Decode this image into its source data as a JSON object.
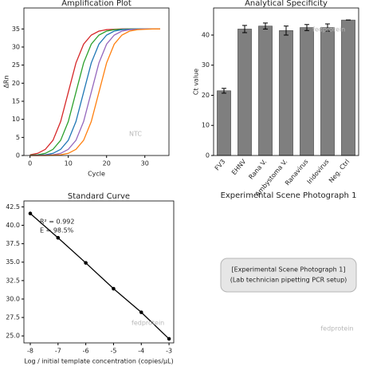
{
  "chart_data": [
    {
      "type": "line",
      "title": "Amplification Plot",
      "x_label": "Cycle",
      "y_label": "ΔRn",
      "x": [
        0,
        2,
        4,
        6,
        8,
        10,
        12,
        14,
        16,
        18,
        20,
        22,
        24,
        26,
        28,
        30,
        32,
        34
      ],
      "series": [
        {
          "color": "#d62728",
          "values": [
            0.2,
            0.6,
            1.7,
            4.2,
            9.4,
            17.5,
            25.6,
            30.8,
            33.3,
            34.4,
            34.8,
            34.9,
            35,
            35,
            35,
            35,
            35,
            35
          ]
        },
        {
          "color": "#2ca02c",
          "values": [
            0.1,
            0.2,
            0.6,
            1.7,
            4.2,
            9.4,
            17.5,
            25.6,
            30.8,
            33.3,
            34.4,
            34.8,
            34.9,
            35,
            35,
            35,
            35,
            35
          ]
        },
        {
          "color": "#1f77b4",
          "values": [
            0,
            0.1,
            0.2,
            0.6,
            1.7,
            4.2,
            9.4,
            17.5,
            25.6,
            30.8,
            33.3,
            34.4,
            34.8,
            34.9,
            35,
            35,
            35,
            35
          ]
        },
        {
          "color": "#9467bd",
          "values": [
            0,
            0,
            0.1,
            0.2,
            0.6,
            1.7,
            4.2,
            9.4,
            17.5,
            25.6,
            30.8,
            33.3,
            34.4,
            34.8,
            34.9,
            35,
            35,
            35
          ]
        },
        {
          "color": "#ff7f0e",
          "values": [
            0,
            0,
            0,
            0.1,
            0.2,
            0.6,
            1.7,
            4.2,
            9.4,
            17.5,
            25.6,
            30.8,
            33.3,
            34.4,
            34.8,
            34.9,
            35,
            35
          ]
        }
      ],
      "xlim": [
        -1.6,
        36.3
      ],
      "xticks": [
        0,
        10,
        20,
        30
      ],
      "ylim": [
        0,
        40.8
      ],
      "yticks": [
        0,
        5,
        10,
        15,
        20,
        25,
        30,
        35
      ],
      "annotations": [
        "NTC"
      ]
    },
    {
      "type": "bar",
      "title": "Analytical Specificity",
      "y_label": "Ct value",
      "categories": [
        "FV3",
        "EHNV",
        "Rana V.",
        "Ambystoma V.",
        "Ranavirus",
        "Iridovirus",
        "Neg. Ctrl"
      ],
      "values": [
        21.5,
        42,
        43,
        41.5,
        42.5,
        42.5,
        45
      ],
      "errors": [
        0.8,
        1.2,
        1,
        1.5,
        1,
        1.2,
        0
      ],
      "color": "#7f7f7f",
      "ylim": [
        0,
        49
      ],
      "yticks": [
        0,
        10,
        20,
        30,
        40
      ],
      "annotations": [
        "fedprotein"
      ]
    },
    {
      "type": "line",
      "title": "Standard Curve",
      "x_label": "Log / initial template concentration (copies/µL)",
      "markers": true,
      "x": [
        -8,
        -7,
        -6,
        -5,
        -4,
        -3
      ],
      "series": [
        {
          "color": "#000000",
          "values": [
            41.6,
            38.3,
            34.9,
            31.4,
            28.2,
            24.6
          ]
        }
      ],
      "xlim": [
        -8.23,
        -2.83
      ],
      "xticks": [
        -8,
        -7,
        -6,
        -5,
        -4,
        -3
      ],
      "ylim": [
        24.05,
        43.3
      ],
      "yticks": [
        {
          "value": 25,
          "label": "25.0"
        },
        {
          "value": 27.5,
          "label": "27.5"
        },
        {
          "value": 30,
          "label": "30.0"
        },
        {
          "value": 32.5,
          "label": "32.5"
        },
        {
          "value": 35,
          "label": "35.0"
        },
        {
          "value": 37.5,
          "label": "37.5"
        },
        {
          "value": 40,
          "label": "40.0"
        },
        {
          "value": 42.5,
          "label": "42.5"
        }
      ],
      "annotations": [
        "R² = 0.992",
        "E = 98.5%",
        "fedprotein"
      ]
    }
  ],
  "photo_panel": {
    "title": "Experimental Scene Photograph 1",
    "line1": "[Experimental Scene Photograph 1]",
    "line2": "(Lab technician pipetting PCR setup)",
    "watermark": "fedprotein"
  }
}
